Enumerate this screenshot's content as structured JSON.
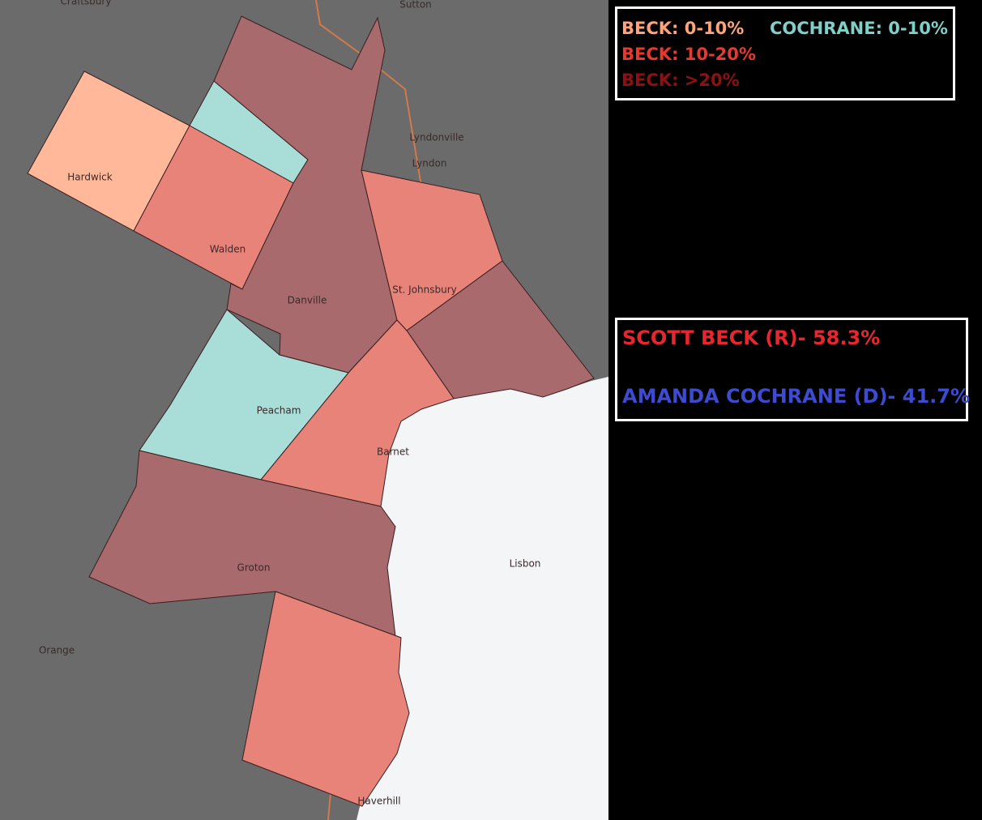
{
  "legend": {
    "items": [
      {
        "label": "BECK: 0-10%",
        "color": "#ffa47a"
      },
      {
        "label": "COCHRANE: 0-10%",
        "color": "#7fd0c8"
      },
      {
        "label": "BECK: 10-20%",
        "color": "#e8392c"
      },
      {
        "label": "BECK: >20%",
        "color": "#8e1010"
      }
    ]
  },
  "results": [
    {
      "label": "SCOTT BECK (R)- 58.3%",
      "color": "#e8262e"
    },
    {
      "label": "AMANDA COCHRANE (D)- 41.7%",
      "color": "#3d4bd1"
    }
  ],
  "places": [
    "Craftsbury",
    "Sutton",
    "Lyndonville",
    "Lyndon",
    "Hardwick",
    "Walden",
    "Danville",
    "St. Johnsbury",
    "Peacham",
    "Barnet",
    "Groton",
    "Lisbon",
    "Orange",
    "Haverhill"
  ]
}
